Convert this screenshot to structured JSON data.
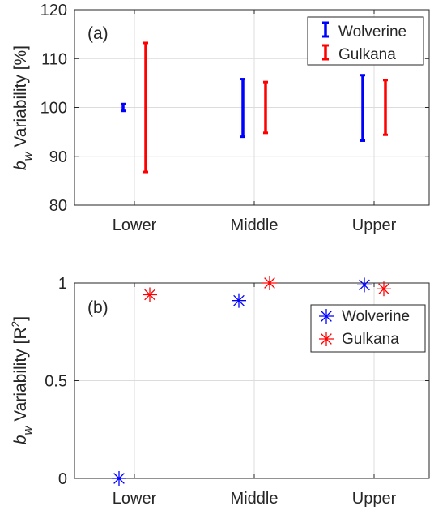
{
  "chart_data": [
    {
      "type": "errorbar",
      "panel_label": "(a)",
      "ylabel_main": "b",
      "ylabel_sub": "w",
      "ylabel_rest": " Variability [%]",
      "categories": [
        "Lower",
        "Middle",
        "Upper"
      ],
      "ylim": [
        80,
        120
      ],
      "yticks": [
        80,
        90,
        100,
        110,
        120
      ],
      "grid": true,
      "legend_position": "top-right",
      "series": [
        {
          "name": "Wolverine",
          "color": "#0000ff",
          "ranges": [
            [
              99.3,
              100.7
            ],
            [
              94.0,
              105.8
            ],
            [
              93.2,
              106.6
            ]
          ]
        },
        {
          "name": "Gulkana",
          "color": "#ff0000",
          "ranges": [
            [
              86.8,
              113.2
            ],
            [
              94.8,
              105.2
            ],
            [
              94.4,
              105.6
            ]
          ]
        }
      ]
    },
    {
      "type": "scatter",
      "panel_label": "(b)",
      "ylabel_main": "b",
      "ylabel_sub": "w",
      "ylabel_rest": " Variability [R",
      "ylabel_sup": "2",
      "ylabel_close": "]",
      "categories": [
        "Lower",
        "Middle",
        "Upper"
      ],
      "ylim": [
        0,
        1
      ],
      "yticks": [
        0,
        0.5,
        1
      ],
      "grid": true,
      "legend_position": "right",
      "marker": "asterisk",
      "series": [
        {
          "name": "Wolverine",
          "color": "#0000ff",
          "values": [
            0.0,
            0.91,
            0.99
          ]
        },
        {
          "name": "Gulkana",
          "color": "#ff0000",
          "values": [
            0.94,
            1.0,
            0.97
          ]
        }
      ]
    }
  ]
}
